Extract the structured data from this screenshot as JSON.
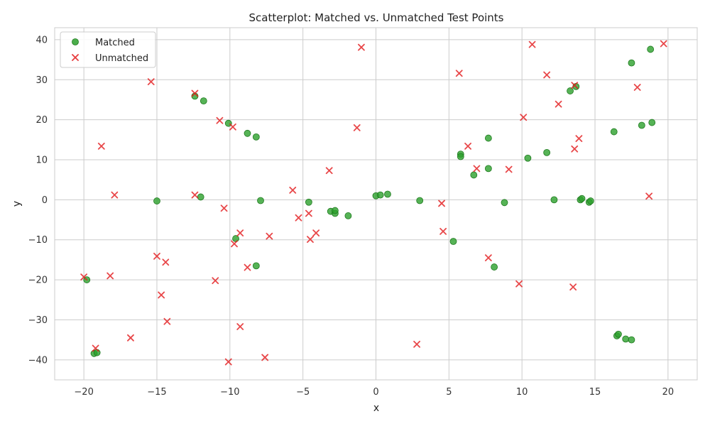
{
  "chart_data": {
    "type": "scatter",
    "title": "Scatterplot: Matched vs. Unmatched Test Points",
    "xlabel": "x",
    "ylabel": "y",
    "xlim": [
      -22,
      22
    ],
    "ylim": [
      -45,
      43
    ],
    "xticks": [
      -20,
      -15,
      -10,
      -5,
      0,
      5,
      10,
      15,
      20
    ],
    "yticks": [
      -40,
      -30,
      -20,
      -10,
      0,
      10,
      20,
      30,
      40
    ],
    "grid": true,
    "legend_position": "top-left",
    "series": [
      {
        "name": "Matched",
        "marker": "circle",
        "color": "#2ca02c",
        "points": [
          [
            -19.8,
            -20.0
          ],
          [
            -19.3,
            -38.4
          ],
          [
            -19.1,
            -38.2
          ],
          [
            -15.0,
            -0.3
          ],
          [
            -12.4,
            25.9
          ],
          [
            -12.0,
            0.7
          ],
          [
            -11.8,
            24.7
          ],
          [
            -10.1,
            19.1
          ],
          [
            -9.6,
            -9.7
          ],
          [
            -8.8,
            16.6
          ],
          [
            -8.2,
            15.7
          ],
          [
            -8.2,
            -16.5
          ],
          [
            -7.9,
            -0.2
          ],
          [
            -4.6,
            -0.6
          ],
          [
            -3.1,
            -2.9
          ],
          [
            -2.8,
            -3.4
          ],
          [
            -2.8,
            -2.7
          ],
          [
            -1.9,
            -4.0
          ],
          [
            0.0,
            1.0
          ],
          [
            0.3,
            1.2
          ],
          [
            0.8,
            1.4
          ],
          [
            3.0,
            -0.2
          ],
          [
            5.3,
            -10.4
          ],
          [
            5.8,
            11.4
          ],
          [
            5.8,
            10.8
          ],
          [
            6.7,
            6.2
          ],
          [
            7.7,
            15.4
          ],
          [
            7.7,
            7.8
          ],
          [
            8.1,
            -16.8
          ],
          [
            8.8,
            -0.7
          ],
          [
            10.4,
            10.4
          ],
          [
            11.7,
            11.8
          ],
          [
            12.2,
            0.0
          ],
          [
            13.3,
            27.2
          ],
          [
            13.7,
            28.3
          ],
          [
            14.0,
            0.0
          ],
          [
            14.1,
            0.3
          ],
          [
            14.6,
            -0.6
          ],
          [
            14.7,
            -0.3
          ],
          [
            16.3,
            17.0
          ],
          [
            16.5,
            -34.0
          ],
          [
            16.6,
            -33.6
          ],
          [
            17.1,
            -34.8
          ],
          [
            17.5,
            -35.0
          ],
          [
            17.5,
            34.2
          ],
          [
            18.2,
            18.6
          ],
          [
            18.8,
            37.6
          ],
          [
            18.9,
            19.3
          ]
        ]
      },
      {
        "name": "Unmatched",
        "marker": "x",
        "color": "#e31a1c",
        "points": [
          [
            -20.0,
            -19.3
          ],
          [
            -19.2,
            -37.1
          ],
          [
            -18.8,
            13.4
          ],
          [
            -18.2,
            -19.0
          ],
          [
            -17.9,
            1.2
          ],
          [
            -16.8,
            -34.5
          ],
          [
            -15.4,
            29.5
          ],
          [
            -15.0,
            -14.1
          ],
          [
            -14.7,
            -23.8
          ],
          [
            -14.4,
            -15.6
          ],
          [
            -14.3,
            -30.4
          ],
          [
            -12.4,
            26.6
          ],
          [
            -12.4,
            1.2
          ],
          [
            -11.0,
            -20.2
          ],
          [
            -10.7,
            19.8
          ],
          [
            -10.4,
            -2.1
          ],
          [
            -10.1,
            -40.5
          ],
          [
            -9.8,
            18.2
          ],
          [
            -9.7,
            -11.0
          ],
          [
            -9.3,
            -8.3
          ],
          [
            -9.3,
            -31.7
          ],
          [
            -8.8,
            -16.9
          ],
          [
            -7.6,
            -39.4
          ],
          [
            -7.3,
            -9.1
          ],
          [
            -5.7,
            2.4
          ],
          [
            -5.3,
            -4.5
          ],
          [
            -4.6,
            -3.4
          ],
          [
            -4.5,
            -9.9
          ],
          [
            -4.1,
            -8.3
          ],
          [
            -3.2,
            7.3
          ],
          [
            -1.3,
            18.0
          ],
          [
            -1.0,
            38.1
          ],
          [
            2.8,
            -36.1
          ],
          [
            4.5,
            -0.9
          ],
          [
            4.6,
            -7.9
          ],
          [
            5.7,
            31.6
          ],
          [
            6.3,
            13.4
          ],
          [
            6.9,
            7.8
          ],
          [
            7.7,
            -14.5
          ],
          [
            9.1,
            7.6
          ],
          [
            9.8,
            -21.0
          ],
          [
            10.1,
            20.6
          ],
          [
            10.7,
            38.8
          ],
          [
            11.7,
            31.2
          ],
          [
            12.5,
            23.9
          ],
          [
            13.5,
            -21.8
          ],
          [
            13.6,
            12.7
          ],
          [
            13.6,
            28.6
          ],
          [
            13.9,
            15.3
          ],
          [
            17.9,
            28.1
          ],
          [
            18.7,
            0.9
          ],
          [
            19.7,
            39.0
          ]
        ]
      }
    ]
  }
}
